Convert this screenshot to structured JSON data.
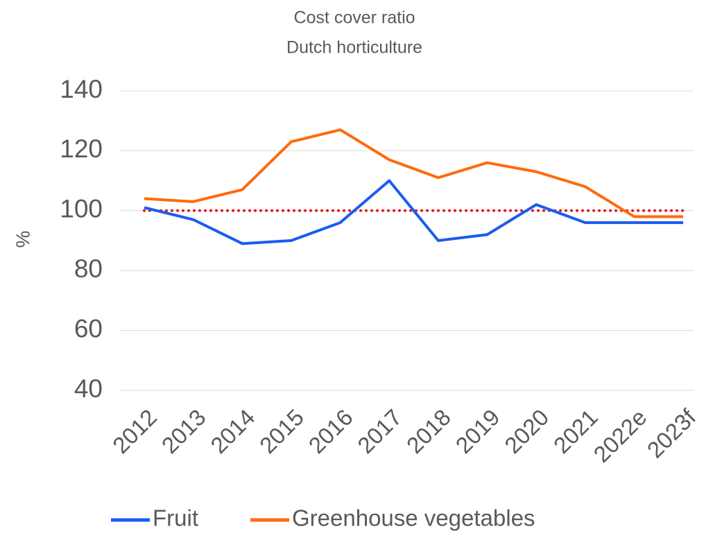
{
  "chart_data": {
    "type": "line",
    "title": "Cost cover ratio",
    "subtitle": "Dutch horticulture",
    "y_label": "%",
    "categories": [
      "2012",
      "2013",
      "2014",
      "2015",
      "2016",
      "2017",
      "2018",
      "2019",
      "2020",
      "2021",
      "2022e",
      "2023f"
    ],
    "series": [
      {
        "name": "Fruit",
        "color": "#1a5cf0",
        "values": [
          101,
          97,
          89,
          90,
          96,
          110,
          90,
          92,
          102,
          96,
          96,
          96
        ]
      },
      {
        "name": "Greenhouse vegetables",
        "color": "#ff6a0d",
        "values": [
          104,
          103,
          107,
          123,
          127,
          117,
          111,
          116,
          113,
          108,
          98,
          98
        ]
      }
    ],
    "reference_lines": [
      {
        "value": 100,
        "color": "#e8141c",
        "style": "dotted"
      }
    ],
    "ylim": [
      40,
      140
    ],
    "yticks": [
      40,
      60,
      80,
      100,
      120,
      140
    ],
    "grid": true,
    "legend": "bottom"
  }
}
